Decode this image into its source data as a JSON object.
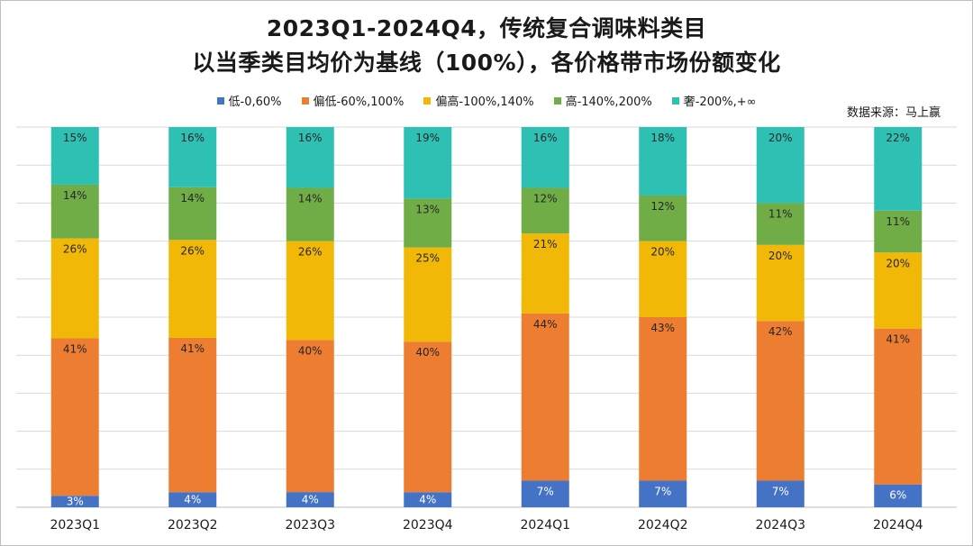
{
  "title_line1": "2023Q1-2024Q4，传统复合调味料类目",
  "title_line2": "以当季类目均价为基线（100%），各价格带市场份额变化",
  "source": "数据来源：马上赢",
  "chart_data": {
    "type": "bar",
    "stacked": true,
    "categories": [
      "2023Q1",
      "2023Q2",
      "2023Q3",
      "2023Q4",
      "2024Q1",
      "2024Q2",
      "2024Q3",
      "2024Q4"
    ],
    "series": [
      {
        "name": "低-0,60%",
        "color": "#4472c4",
        "values": [
          3,
          4,
          4,
          4,
          7,
          7,
          7,
          6
        ]
      },
      {
        "name": "偏低-60%,100%",
        "color": "#ed7d31",
        "values": [
          41,
          41,
          40,
          40,
          44,
          43,
          42,
          41
        ]
      },
      {
        "name": "偏高-100%,140%",
        "color": "#f2b807",
        "values": [
          26,
          26,
          26,
          25,
          21,
          20,
          20,
          20
        ]
      },
      {
        "name": "高-140%,200%",
        "color": "#70ad47",
        "values": [
          14,
          14,
          14,
          13,
          12,
          12,
          11,
          11
        ]
      },
      {
        "name": "奢-200%,+∞",
        "color": "#2fc0b4",
        "values": [
          15,
          16,
          16,
          19,
          16,
          18,
          20,
          22
        ]
      }
    ],
    "value_format": "percent",
    "ylim": [
      0,
      100
    ],
    "grid": true,
    "legend_position": "top"
  }
}
